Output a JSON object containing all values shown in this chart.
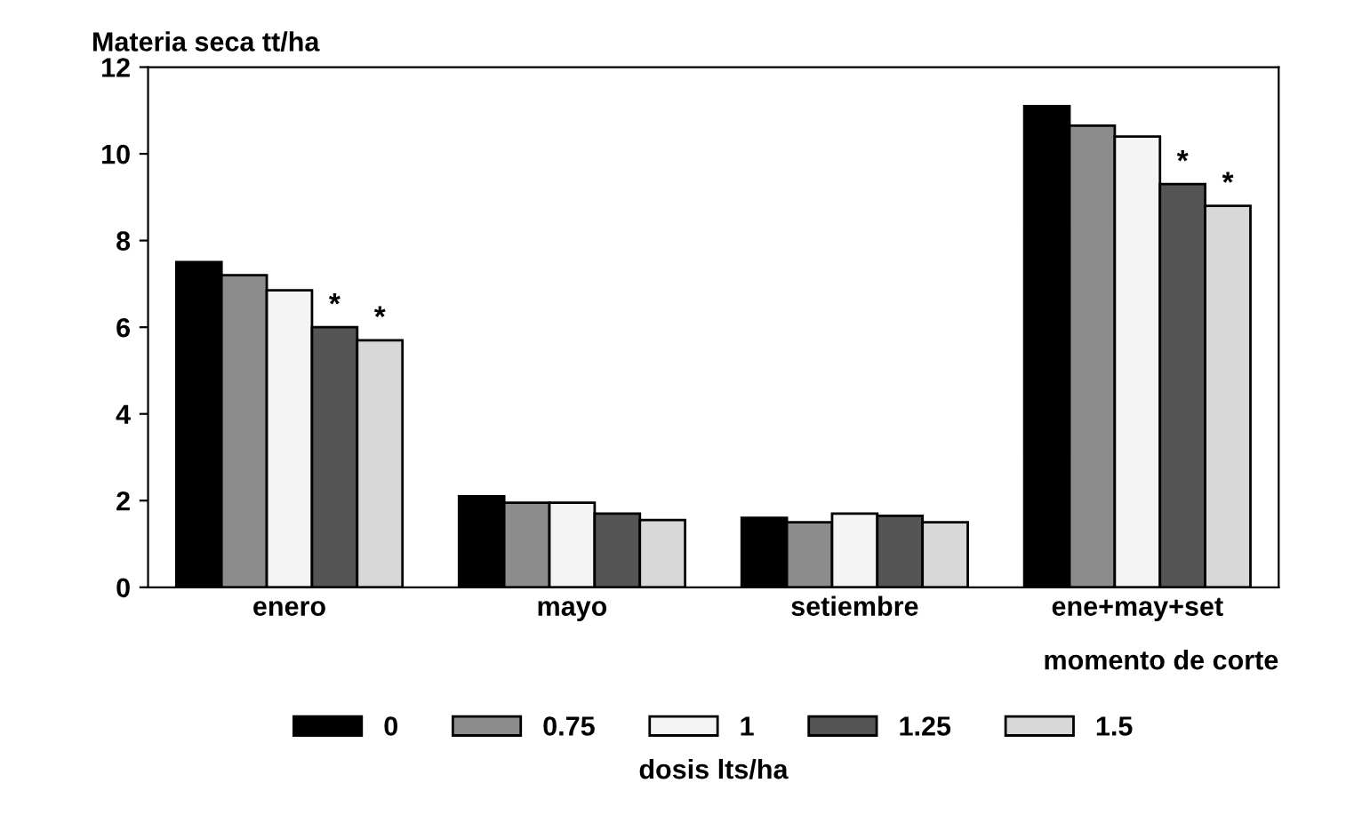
{
  "chart_data": {
    "type": "bar",
    "ylabel": "Materia seca tt/ha",
    "xlabel": "momento de corte",
    "legend_title": "dosis lts/ha",
    "categories": [
      "enero",
      "mayo",
      "setiembre",
      "ene+may+set"
    ],
    "series": [
      {
        "name": "0",
        "color": "#000000",
        "values": [
          7.5,
          2.1,
          1.6,
          11.1
        ]
      },
      {
        "name": "0.75",
        "color": "#8c8c8c",
        "values": [
          7.2,
          1.95,
          1.5,
          10.65
        ]
      },
      {
        "name": "1",
        "color": "#f4f4f4",
        "values": [
          6.85,
          1.95,
          1.7,
          10.4
        ]
      },
      {
        "name": "1.25",
        "color": "#555555",
        "values": [
          6.0,
          1.7,
          1.65,
          9.3
        ],
        "value_labels": [
          "*",
          null,
          null,
          "*"
        ]
      },
      {
        "name": "1.5",
        "color": "#d8d8d8",
        "values": [
          5.7,
          1.55,
          1.5,
          8.8
        ],
        "value_labels": [
          "*",
          null,
          null,
          "*"
        ]
      }
    ],
    "ylim": [
      0,
      12
    ],
    "yticks": [
      0,
      2,
      4,
      6,
      8,
      10,
      12
    ],
    "grid": false,
    "legend": "bottom"
  }
}
